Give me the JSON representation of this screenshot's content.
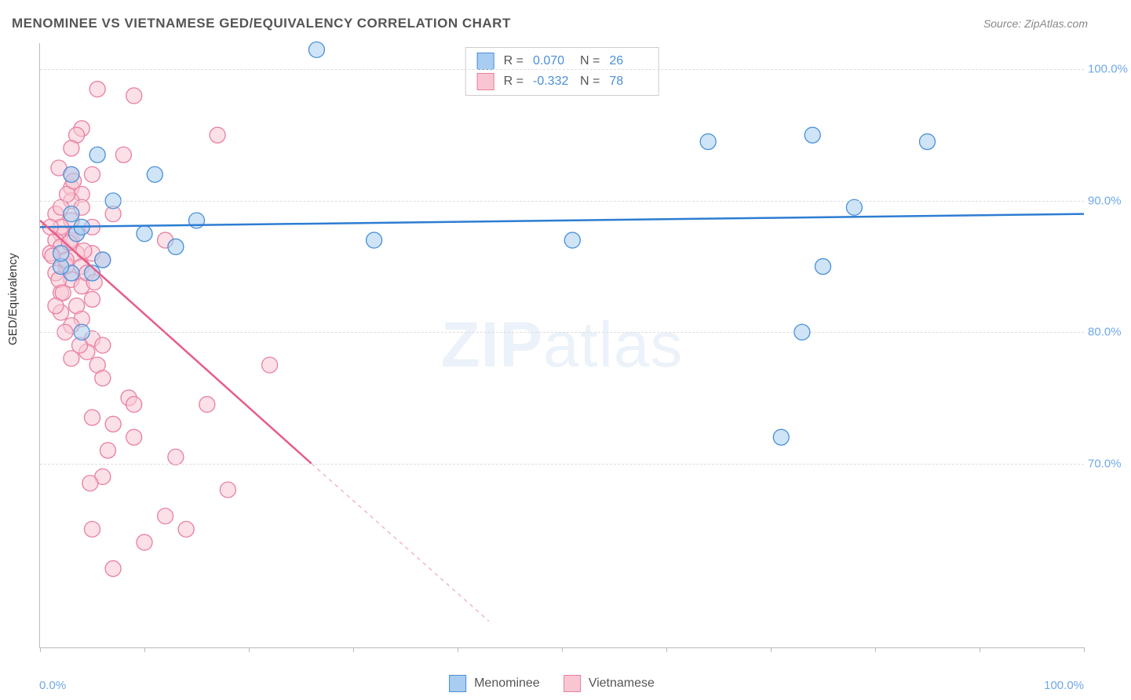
{
  "title": "MENOMINEE VS VIETNAMESE GED/EQUIVALENCY CORRELATION CHART",
  "source": "Source: ZipAtlas.com",
  "ylabel": "GED/Equivalency",
  "watermark": {
    "bold": "ZIP",
    "rest": "atlas"
  },
  "chart": {
    "type": "scatter",
    "xlim": [
      0,
      100
    ],
    "ylim": [
      56,
      102
    ],
    "yticks": [
      70,
      80,
      90,
      100
    ],
    "ytick_labels": [
      "70.0%",
      "80.0%",
      "90.0%",
      "100.0%"
    ],
    "xtick_positions": [
      0,
      10,
      20,
      30,
      40,
      50,
      60,
      70,
      80,
      90,
      100
    ],
    "xtick_left": "0.0%",
    "xtick_right": "100.0%",
    "background_color": "#ffffff",
    "grid_color": "#dddddd",
    "point_radius": 10,
    "colors": {
      "blue_fill": "#a8cdf0",
      "blue_stroke": "#4a90d9",
      "blue_line": "#2d7dd2",
      "pink_fill": "#f8c6d3",
      "pink_stroke": "#e97fa0",
      "pink_line": "#e75d88",
      "tick_label": "#6fa8e8",
      "text": "#555555"
    },
    "series": {
      "menominee": {
        "label": "Menominee",
        "R_label": "R =",
        "R_value": "0.070",
        "N_label": "N =",
        "N_value": "26",
        "regression": {
          "x1": 0,
          "y1": 88.0,
          "x2": 100,
          "y2": 89.0
        },
        "points": [
          [
            26.5,
            101.5
          ],
          [
            5.5,
            93.5
          ],
          [
            3,
            92
          ],
          [
            3.5,
            87.5
          ],
          [
            11,
            92
          ],
          [
            7,
            90
          ],
          [
            15,
            88.5
          ],
          [
            13,
            86.5
          ],
          [
            3,
            84.5
          ],
          [
            5,
            84.5
          ],
          [
            2,
            85
          ],
          [
            4,
            80
          ],
          [
            64,
            94.5
          ],
          [
            74,
            95
          ],
          [
            85,
            94.5
          ],
          [
            78,
            89.5
          ],
          [
            75,
            85
          ],
          [
            73,
            80
          ],
          [
            71,
            72
          ],
          [
            51,
            87
          ],
          [
            32,
            87
          ],
          [
            10,
            87.5
          ],
          [
            3,
            89
          ],
          [
            4,
            88
          ],
          [
            2,
            86
          ],
          [
            6,
            85.5
          ]
        ]
      },
      "vietnamese": {
        "label": "Vietnamese",
        "R_label": "R =",
        "R_value": "-0.332",
        "N_label": "N =",
        "N_value": "78",
        "regression_solid": {
          "x1": 0,
          "y1": 88.5,
          "x2": 26,
          "y2": 70
        },
        "regression_dash": {
          "x1": 26,
          "y1": 70,
          "x2": 43,
          "y2": 58
        },
        "points": [
          [
            5.5,
            98.5
          ],
          [
            9,
            98
          ],
          [
            4,
            95.5
          ],
          [
            3.5,
            95
          ],
          [
            3,
            94
          ],
          [
            8,
            93.5
          ],
          [
            17,
            95
          ],
          [
            3,
            92
          ],
          [
            5,
            92
          ],
          [
            3,
            91
          ],
          [
            4,
            90.5
          ],
          [
            7,
            89
          ],
          [
            12,
            87
          ],
          [
            5,
            88
          ],
          [
            3,
            88.5
          ],
          [
            2,
            87.5
          ],
          [
            1.5,
            87
          ],
          [
            2,
            86.5
          ],
          [
            3.5,
            86
          ],
          [
            5,
            86
          ],
          [
            6,
            85.5
          ],
          [
            4,
            85
          ],
          [
            2.5,
            85
          ],
          [
            1.5,
            84.5
          ],
          [
            3,
            84
          ],
          [
            4,
            83.5
          ],
          [
            2,
            83
          ],
          [
            5,
            82.5
          ],
          [
            3.5,
            82
          ],
          [
            2,
            81.5
          ],
          [
            4,
            81
          ],
          [
            3,
            80.5
          ],
          [
            5,
            79.5
          ],
          [
            6,
            79
          ],
          [
            4.5,
            78.5
          ],
          [
            3,
            78
          ],
          [
            5.5,
            77.5
          ],
          [
            22,
            77.5
          ],
          [
            6,
            76.5
          ],
          [
            8.5,
            75
          ],
          [
            9,
            74.5
          ],
          [
            16,
            74.5
          ],
          [
            5,
            73.5
          ],
          [
            7,
            73
          ],
          [
            9,
            72
          ],
          [
            13,
            70.5
          ],
          [
            6,
            69
          ],
          [
            18,
            68
          ],
          [
            12,
            66
          ],
          [
            5,
            65
          ],
          [
            14,
            65
          ],
          [
            10,
            64
          ],
          [
            7,
            62
          ],
          [
            1.5,
            89
          ],
          [
            2,
            88
          ],
          [
            3,
            87
          ],
          [
            1,
            86
          ],
          [
            2.5,
            85.5
          ],
          [
            1.8,
            84
          ],
          [
            2.2,
            83
          ],
          [
            1.5,
            82
          ],
          [
            3,
            90
          ],
          [
            4,
            89.5
          ],
          [
            2,
            89.5
          ],
          [
            1,
            88
          ],
          [
            3.5,
            87.5
          ],
          [
            2.8,
            86.8
          ],
          [
            4.2,
            86.2
          ],
          [
            1.2,
            85.8
          ],
          [
            2.6,
            90.5
          ],
          [
            3.2,
            91.5
          ],
          [
            1.8,
            92.5
          ],
          [
            4.5,
            84.5
          ],
          [
            5.2,
            83.8
          ],
          [
            2.4,
            80
          ],
          [
            3.8,
            79
          ],
          [
            6.5,
            71
          ],
          [
            4.8,
            68.5
          ]
        ]
      }
    }
  },
  "legend": {
    "item1": "Menominee",
    "item2": "Vietnamese"
  }
}
